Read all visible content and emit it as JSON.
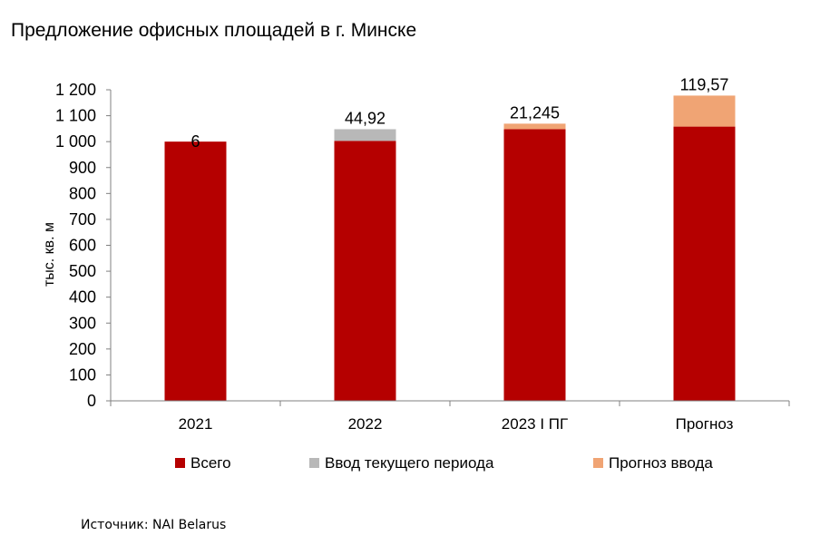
{
  "chart_data": {
    "type": "bar",
    "stacked": true,
    "title": "Предложение офисных площадей в г. Минске",
    "ylabel": "тыс. кв. м",
    "xlabel": "",
    "ylim": [
      0,
      1200
    ],
    "yticks": [
      0,
      100,
      200,
      300,
      400,
      500,
      600,
      700,
      800,
      900,
      1000,
      1100,
      1200
    ],
    "ytick_labels": [
      "0",
      "100",
      "200",
      "300",
      "400",
      "500",
      "600",
      "700",
      "800",
      "900",
      "1 000",
      "1 100",
      "1 200"
    ],
    "categories": [
      "2021",
      "2022",
      "2023 I ПГ",
      "Прогноз"
    ],
    "grid": false,
    "legend_position": "bottom",
    "series": [
      {
        "name": "Всего",
        "color": "#b50000",
        "values": [
          1000,
          1003,
          1048,
          1058
        ]
      },
      {
        "name": "Ввод текущего периода",
        "color": "#b8b8b8",
        "values": [
          0,
          44.92,
          0,
          0
        ]
      },
      {
        "name": "Прогноз ввода",
        "color": "#f0a474",
        "values": [
          0,
          0,
          21.245,
          119.57
        ]
      }
    ],
    "data_labels": [
      "6",
      "44,92",
      "21,245",
      "119,57"
    ]
  },
  "source": "Источник: NAI Belarus"
}
